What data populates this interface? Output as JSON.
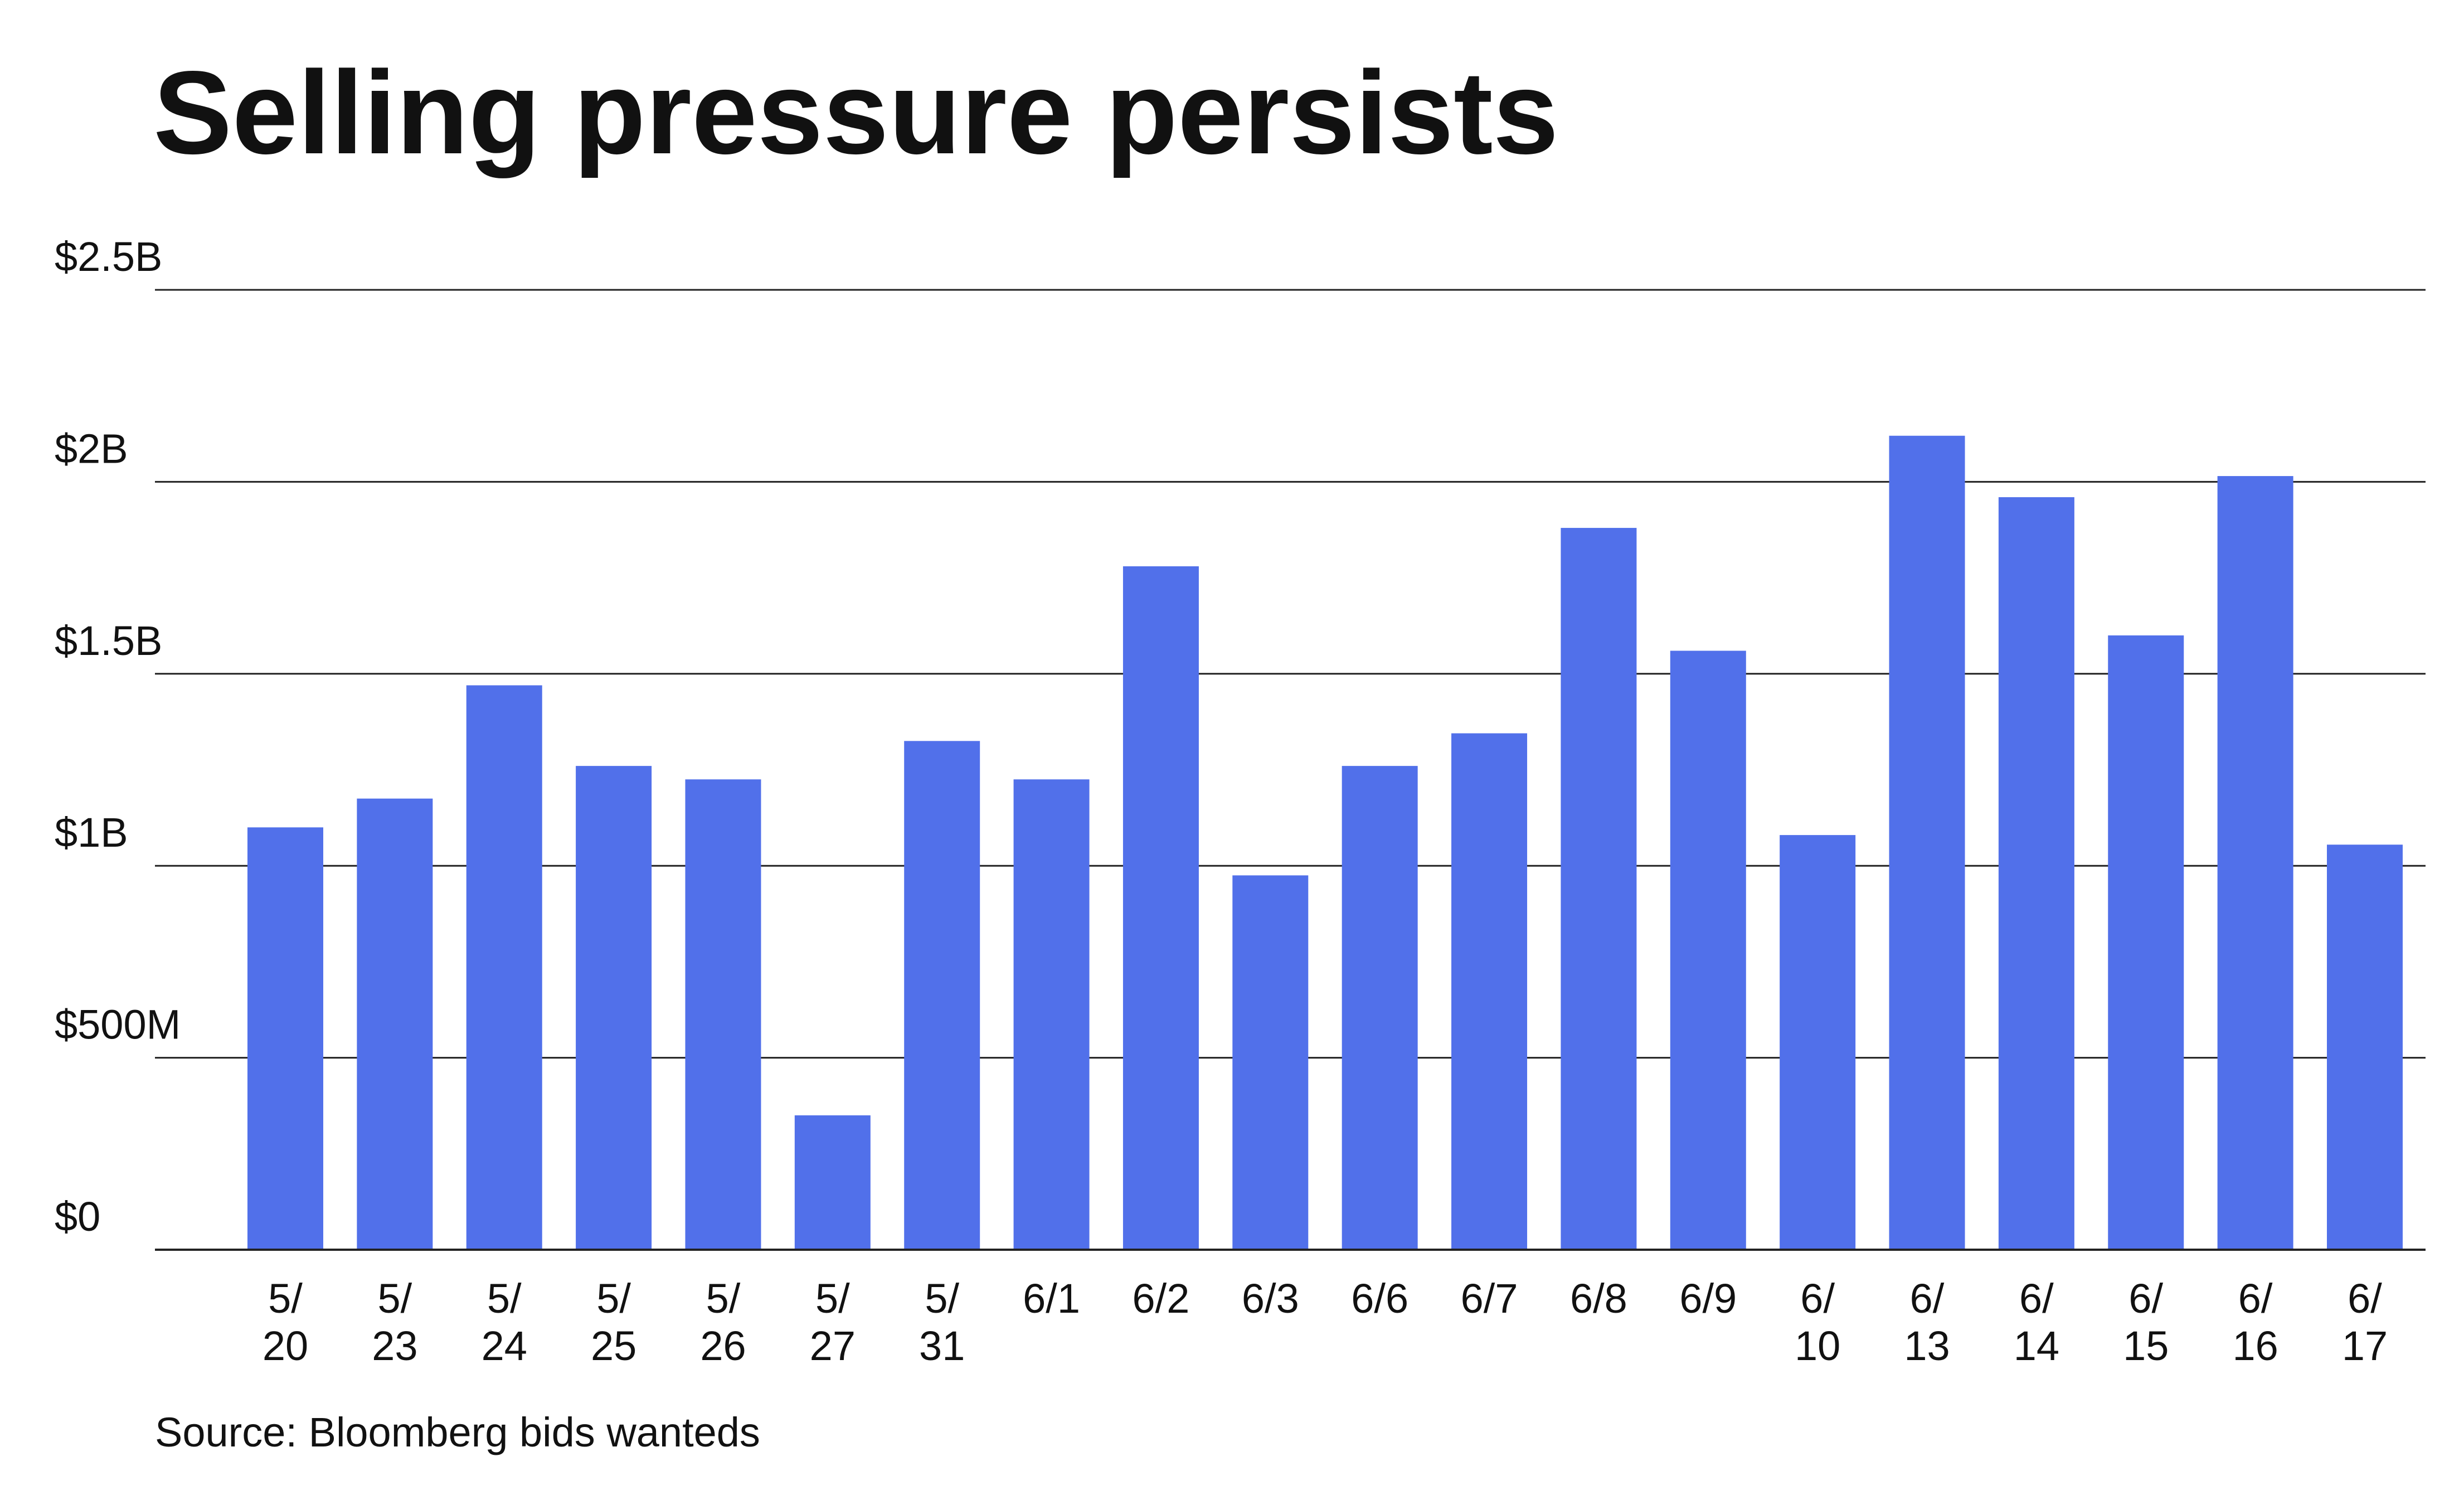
{
  "chart_data": {
    "type": "bar",
    "title": "Selling pressure persists",
    "source": "Source: Bloomberg bids wanteds",
    "xlabel": "",
    "ylabel": "",
    "ylim": [
      0,
      2500000000
    ],
    "y_ticks": [
      {
        "value": 0,
        "label": "$0"
      },
      {
        "value": 500000000,
        "label": "$500M"
      },
      {
        "value": 1000000000,
        "label": "$1B"
      },
      {
        "value": 1500000000,
        "label": "$1.5B"
      },
      {
        "value": 2000000000,
        "label": "$2B"
      },
      {
        "value": 2500000000,
        "label": "$2.5B"
      }
    ],
    "grid": true,
    "legend": "none",
    "bar_color": "#5170ea",
    "categories": [
      {
        "line1": "5/",
        "line2": "20"
      },
      {
        "line1": "5/",
        "line2": "23"
      },
      {
        "line1": "5/",
        "line2": "24"
      },
      {
        "line1": "5/",
        "line2": "25"
      },
      {
        "line1": "5/",
        "line2": "26"
      },
      {
        "line1": "5/",
        "line2": "27"
      },
      {
        "line1": "5/",
        "line2": "31"
      },
      {
        "line1": "6/1",
        "line2": ""
      },
      {
        "line1": "6/2",
        "line2": ""
      },
      {
        "line1": "6/3",
        "line2": ""
      },
      {
        "line1": "6/6",
        "line2": ""
      },
      {
        "line1": "6/7",
        "line2": ""
      },
      {
        "line1": "6/8",
        "line2": ""
      },
      {
        "line1": "6/9",
        "line2": ""
      },
      {
        "line1": "6/",
        "line2": "10"
      },
      {
        "line1": "6/",
        "line2": "13"
      },
      {
        "line1": "6/",
        "line2": "14"
      },
      {
        "line1": "6/",
        "line2": "15"
      },
      {
        "line1": "6/",
        "line2": "16"
      },
      {
        "line1": "6/",
        "line2": "17"
      }
    ],
    "values": [
      1100000000,
      1175000000,
      1470000000,
      1260000000,
      1225000000,
      350000000,
      1325000000,
      1225000000,
      1780000000,
      975000000,
      1260000000,
      1345000000,
      1880000000,
      1560000000,
      1080000000,
      2120000000,
      1960000000,
      1600000000,
      2015000000,
      1055000000
    ]
  }
}
